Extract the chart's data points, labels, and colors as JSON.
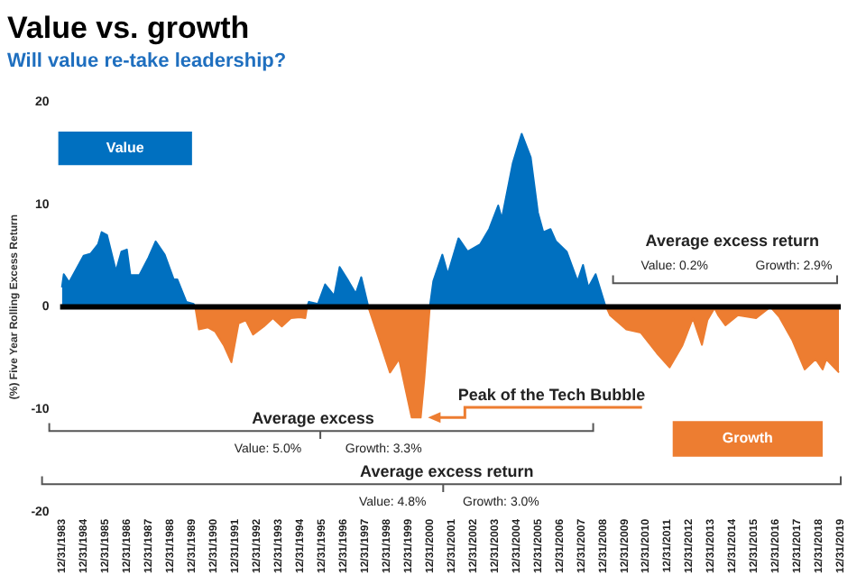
{
  "chart_data": {
    "type": "area",
    "title": "Value vs. growth",
    "subtitle": "Will value re-take leadership?",
    "ylabel": "(%) Five Year Rolling Excess Return",
    "xlim": [
      "1983-12",
      "2019-12-31"
    ],
    "ylim": [
      -20,
      20
    ],
    "yticks": [
      -20,
      -10,
      0,
      10,
      20
    ],
    "xticks": [
      {
        "value": "1983-12-31",
        "label": "12/31/1983"
      },
      {
        "value": "1984-12-31",
        "label": "12/31/1984"
      },
      {
        "value": "1985-12-31",
        "label": "12/31/1985"
      },
      {
        "value": "1986-12-31",
        "label": "12/31/1986"
      },
      {
        "value": "1987-12-31",
        "label": "12/31/1987"
      },
      {
        "value": "1988-12-31",
        "label": "12/31/1988"
      },
      {
        "value": "1989-12-31",
        "label": "12/31/1989"
      },
      {
        "value": "1990-12-31",
        "label": "12/31/1990"
      },
      {
        "value": "1991-12-31",
        "label": "12/31/1991"
      },
      {
        "value": "1992-12-31",
        "label": "12/31/1992"
      },
      {
        "value": "1993-12-31",
        "label": "12/31/1993"
      },
      {
        "value": "1994-12-31",
        "label": "12/31/1994"
      },
      {
        "value": "1995-12-31",
        "label": "12/31/1995"
      },
      {
        "value": "1996-12-31",
        "label": "12/31/1996"
      },
      {
        "value": "1997-12-31",
        "label": "12/31/1997"
      },
      {
        "value": "1998-12-31",
        "label": "12/31/1998"
      },
      {
        "value": "1999-12-31",
        "label": "12/31/1999"
      },
      {
        "value": "2000-12-31",
        "label": "12/31/2000"
      },
      {
        "value": "2001-12-31",
        "label": "12/31/2001"
      },
      {
        "value": "2002-12-31",
        "label": "12/31/2002"
      },
      {
        "value": "2003-12-31",
        "label": "12/31/2003"
      },
      {
        "value": "2004-12-31",
        "label": "12/31/2004"
      },
      {
        "value": "2005-12-31",
        "label": "12/31/2005"
      },
      {
        "value": "2006-12-31",
        "label": "12/31/2006"
      },
      {
        "value": "2007-12-31",
        "label": "12/31/2007"
      },
      {
        "value": "2008-12-31",
        "label": "12/31/2008"
      },
      {
        "value": "2009-12-31",
        "label": "12/31/2009"
      },
      {
        "value": "2010-12-31",
        "label": "12/31/2010"
      },
      {
        "value": "2011-12-31",
        "label": "12/31/2011"
      },
      {
        "value": "2012-12-31",
        "label": "12/31/2012"
      },
      {
        "value": "2013-12-31",
        "label": "12/31/2013"
      },
      {
        "value": "2014-12-31",
        "label": "12/31/2014"
      },
      {
        "value": "2015-12-31",
        "label": "12/31/2015"
      },
      {
        "value": "2016-12-31",
        "label": "12/31/2016"
      },
      {
        "value": "2017-12-31",
        "label": "12/31/2017"
      },
      {
        "value": "2018-12-31",
        "label": "12/31/2018"
      },
      {
        "value": "2019-12-31",
        "label": "12/31/2019"
      }
    ],
    "series": [
      {
        "name": "Value",
        "color": "#0070c0",
        "x": [
          "1984-01",
          "1984-02",
          "1984-05",
          "1985-01",
          "1985-05",
          "1985-09",
          "1985-11",
          "1986-02",
          "1986-07",
          "1986-10",
          "1987-01",
          "1987-03",
          "1987-08",
          "1988-01",
          "1988-05",
          "1988-10",
          "1989-03",
          "1989-05",
          "1989-10",
          "1990-02",
          "1990-03",
          null,
          "1995-05",
          "1995-06",
          "1995-11",
          "1996-03",
          "1996-08",
          "1996-11",
          "1997-04",
          "1997-08",
          "1997-11",
          "1998-03",
          null,
          "2001-01",
          "2001-03",
          "2001-08",
          "2001-11",
          "2002-05",
          "2002-10",
          "2003-05",
          "2003-10",
          "2004-03",
          "2004-05",
          "2004-11",
          "2005-04",
          "2005-09",
          "2006-01",
          "2006-04",
          "2006-08",
          "2006-11",
          "2007-05",
          "2007-11",
          "2008-02",
          "2008-05",
          "2008-09",
          "2009-02",
          "2009-03"
        ],
        "values": [
          1.9,
          3.2,
          2.4,
          5.0,
          5.2,
          6.1,
          7.3,
          7.0,
          3.5,
          5.4,
          5.6,
          3.1,
          3.1,
          4.8,
          6.4,
          5.1,
          2.7,
          2.7,
          0.5,
          0.3,
          0,
          null,
          0,
          0.5,
          0.3,
          2.2,
          1.1,
          3.9,
          2.5,
          1.3,
          2.9,
          0,
          null,
          0,
          2.5,
          5.1,
          3.2,
          6.7,
          5.4,
          6.1,
          7.6,
          9.9,
          8.6,
          14.0,
          16.9,
          14.6,
          9.2,
          7.3,
          7.6,
          6.4,
          5.4,
          2.5,
          4.1,
          1.9,
          3.2,
          0.3,
          0
        ]
      },
      {
        "name": "Growth",
        "color": "#ed7d31",
        "x": [
          "1990-03",
          "1990-05",
          "1990-10",
          "1991-02",
          "1991-07",
          "1991-11",
          "1992-03",
          "1992-07",
          "1992-11",
          "1993-05",
          "1993-10",
          "1994-03",
          "1994-08",
          "1995-01",
          "1995-04",
          "1995-05",
          null,
          "1998-03",
          "1998-09",
          "1999-03",
          "1999-08",
          "2000-03",
          "2000-08",
          "2000-10",
          "2001-01",
          null,
          "2009-03",
          "2009-05",
          "2010-02",
          "2010-10",
          "2011-07",
          "2012-02",
          "2012-09",
          "2013-03",
          "2013-08",
          "2013-11",
          "2014-03",
          "2014-05",
          "2014-09",
          "2015-04",
          "2016-02",
          "2016-10",
          "2017-03",
          "2017-10",
          "2018-05",
          "2018-11",
          "2019-03",
          "2019-05",
          "2019-12"
        ],
        "values": [
          0,
          -2.2,
          -2.0,
          -2.4,
          -3.8,
          -5.4,
          -1.6,
          -1.3,
          -2.7,
          -1.9,
          -1.1,
          -1.9,
          -1.1,
          -1.0,
          -1.1,
          0,
          null,
          0,
          -3.2,
          -6.4,
          -5.1,
          -10.8,
          -10.8,
          -7.0,
          0,
          null,
          0,
          -0.8,
          -2.2,
          -2.5,
          -4.5,
          -5.9,
          -3.8,
          -1.1,
          -3.7,
          -1.3,
          -0.1,
          -0.8,
          -1.8,
          -0.8,
          -1.1,
          0,
          -1.0,
          -3.2,
          -6.1,
          -5.1,
          -6.1,
          -5.1,
          -6.4
        ]
      }
    ],
    "ref_lines": [
      {
        "axis": "y",
        "value": 0,
        "color": "#000000"
      }
    ],
    "annotations": [
      {
        "text": "Peak of the Tech Bubble",
        "x": "2000-08",
        "y": -10.8
      },
      "Average excess",
      "Value: 5.0%",
      "Growth: 3.3%",
      "Average excess return",
      "Value: 4.8%",
      "Growth: 3.0%",
      "Average excess return",
      "Value: 0.2%",
      "Growth: 2.9%"
    ],
    "grid": false
  }
}
